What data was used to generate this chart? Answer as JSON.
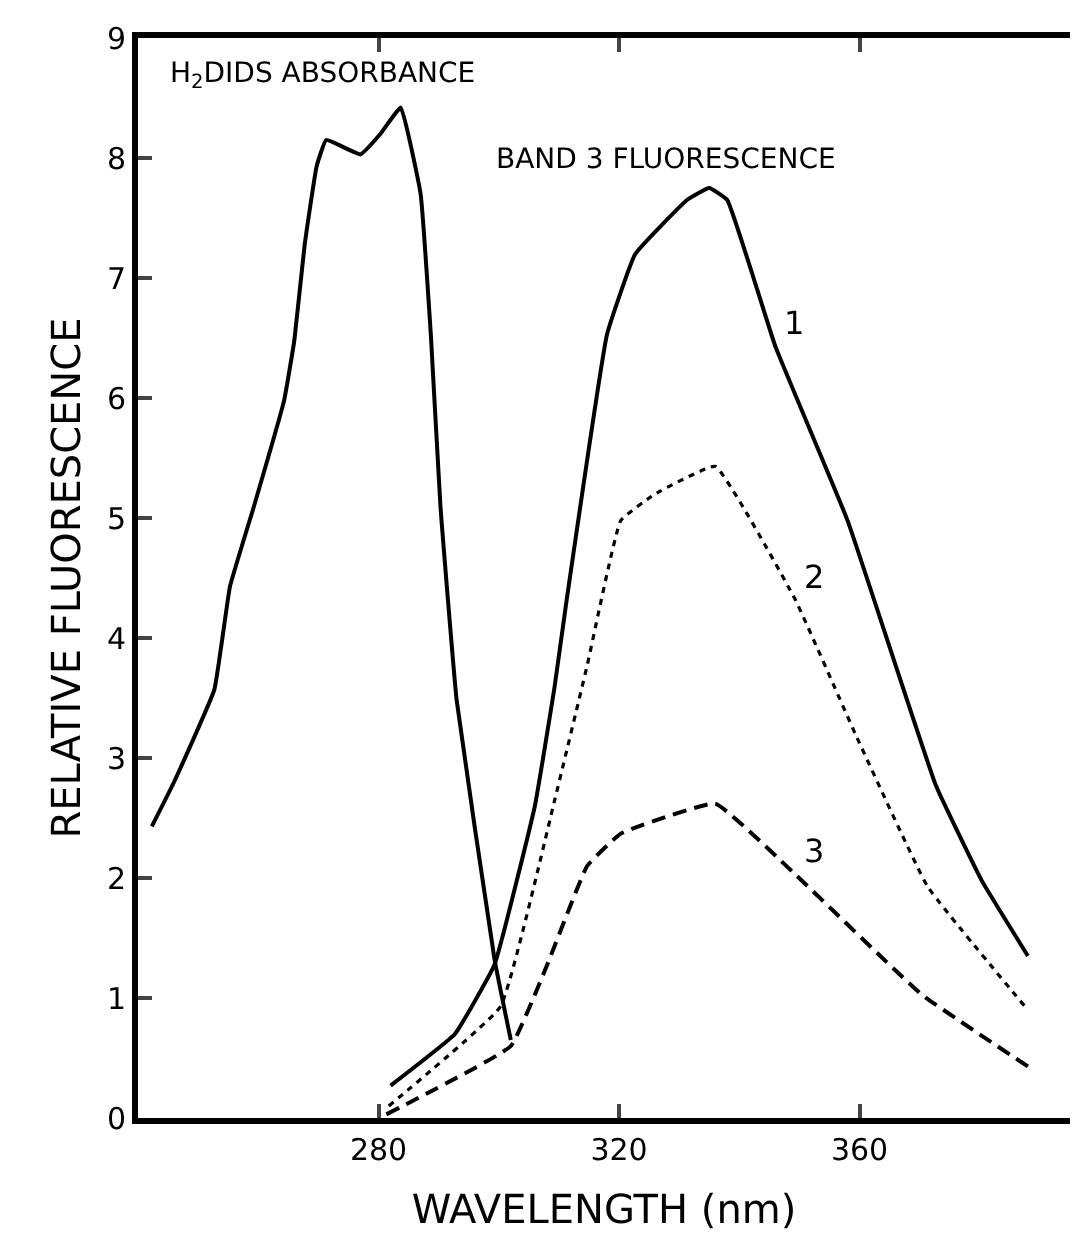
{
  "chart_data": {
    "type": "line",
    "xlabel": "WAVELENGTH (nm)",
    "ylabel": "RELATIVE FLUORESCENCE",
    "xlim": [
      240,
      395
    ],
    "xticks": [
      280,
      320,
      360
    ],
    "ylim": [
      0,
      9
    ],
    "yticks": [
      0,
      1,
      2,
      3,
      4,
      5,
      6,
      7,
      8,
      9
    ],
    "legend": false,
    "marker": "none",
    "series": [
      {
        "color": "#000000",
        "line_style": "solid",
        "x": [
          242.3,
          246,
          252.7,
          255.3,
          259.3,
          264.3,
          266,
          267.7,
          269.7,
          271.3,
          277,
          280.3,
          283.7,
          287,
          288.7,
          290.3,
          293,
          299.3,
          302
        ],
        "values": [
          2.43,
          2.8,
          3.57,
          4.43,
          5.1,
          5.98,
          6.48,
          7.27,
          7.93,
          8.15,
          8.03,
          8.2,
          8.42,
          7.7,
          6.53,
          5.1,
          3.48,
          1.32,
          0.65
        ]
      },
      {
        "name": "1",
        "color": "#000000",
        "line_style": "solid",
        "x": [
          282,
          292.7,
          299.3,
          306,
          309.3,
          311.3,
          318,
          322.7,
          331.3,
          335,
          338,
          346,
          358,
          372.7,
          380.3,
          388
        ],
        "values": [
          0.27,
          0.7,
          1.28,
          2.6,
          3.6,
          4.32,
          6.53,
          7.2,
          7.65,
          7.75,
          7.65,
          6.43,
          4.98,
          2.77,
          1.98,
          1.35
        ]
      },
      {
        "name": "2",
        "color": "#000000",
        "line_style": "dotted",
        "x": [
          281.7,
          300.3,
          309.3,
          314.7,
          320.3,
          326,
          336,
          349.3,
          359.3,
          371.3,
          388
        ],
        "values": [
          0.1,
          0.93,
          2.65,
          3.77,
          4.98,
          5.2,
          5.43,
          4.32,
          3.2,
          1.93,
          0.9
        ]
      },
      {
        "name": "3",
        "color": "#000000",
        "line_style": "dashed",
        "x": [
          281.3,
          302,
          308,
          314.7,
          320.3,
          336,
          349.3,
          370.3,
          388
        ],
        "values": [
          0.03,
          0.6,
          1.27,
          2.1,
          2.37,
          2.62,
          2.03,
          1.03,
          0.43
        ]
      }
    ],
    "annotations": [
      "H$_{2}$DIDS ABSORBANCE",
      "BAND 3 FLUORESCENCE"
    ]
  }
}
